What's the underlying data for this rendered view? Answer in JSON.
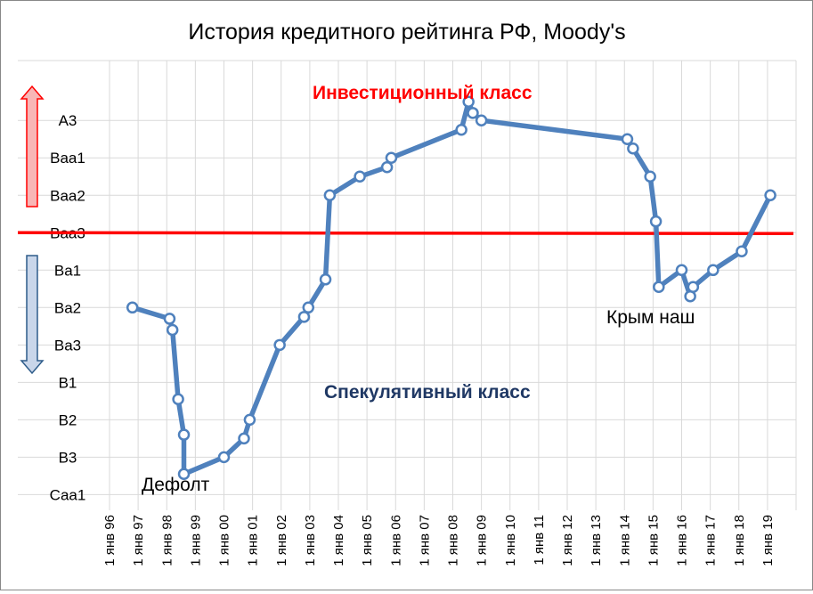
{
  "chart_data": {
    "type": "line",
    "title": "История кредитного рейтинга РФ, Moody's",
    "xlabel": "",
    "ylabel": "",
    "y_categories": [
      "Caa1",
      "B3",
      "B2",
      "B1",
      "Ba3",
      "Ba2",
      "Ba1",
      "Baa3",
      "Baa2",
      "Baa1",
      "A3"
    ],
    "x_tick_labels": [
      "1 янв 96",
      "1 янв 97",
      "1 янв 98",
      "1 янв 99",
      "1 янв 00",
      "1 янв 01",
      "1 янв 02",
      "1 янв 03",
      "1 янв 04",
      "1 янв 05",
      "1 янв 06",
      "1 янв 07",
      "1 янв 08",
      "1 янв 09",
      "1 янв 10",
      "1 янв 11",
      "1 янв 12",
      "1 янв 13",
      "1 янв 14",
      "1 янв 15",
      "1 янв 16",
      "1 янв 17",
      "1 янв 18",
      "1 янв 19"
    ],
    "x_range": [
      1996,
      2020
    ],
    "y_range": [
      -0.3,
      11.6
    ],
    "grid": true,
    "series": [
      {
        "color": "#4f81bd",
        "points": [
          {
            "x": 1996.8,
            "y": 5
          },
          {
            "x": 1998.1,
            "y": 4.7
          },
          {
            "x": 1998.2,
            "y": 4.4
          },
          {
            "x": 1998.4,
            "y": 2.55
          },
          {
            "x": 1998.6,
            "y": 1.6
          },
          {
            "x": 1998.6,
            "y": 0.55
          },
          {
            "x": 2000.0,
            "y": 1.0
          },
          {
            "x": 2000.7,
            "y": 1.5
          },
          {
            "x": 2000.9,
            "y": 2.0
          },
          {
            "x": 2001.95,
            "y": 4.0
          },
          {
            "x": 2002.8,
            "y": 4.75
          },
          {
            "x": 2002.95,
            "y": 5.0
          },
          {
            "x": 2003.55,
            "y": 5.75
          },
          {
            "x": 2003.7,
            "y": 8.0
          },
          {
            "x": 2004.75,
            "y": 8.5
          },
          {
            "x": 2005.7,
            "y": 8.75
          },
          {
            "x": 2005.85,
            "y": 9.0
          },
          {
            "x": 2008.3,
            "y": 9.75
          },
          {
            "x": 2008.55,
            "y": 10.5
          },
          {
            "x": 2008.7,
            "y": 10.2
          },
          {
            "x": 2009.0,
            "y": 10.0
          },
          {
            "x": 2014.1,
            "y": 9.5
          },
          {
            "x": 2014.3,
            "y": 9.25
          },
          {
            "x": 2014.9,
            "y": 8.5
          },
          {
            "x": 2015.1,
            "y": 7.3
          },
          {
            "x": 2015.2,
            "y": 5.55
          },
          {
            "x": 2016.0,
            "y": 6.0
          },
          {
            "x": 2016.3,
            "y": 5.3
          },
          {
            "x": 2016.4,
            "y": 5.55
          },
          {
            "x": 2017.1,
            "y": 6.0
          },
          {
            "x": 2018.1,
            "y": 6.5
          },
          {
            "x": 2019.1,
            "y": 8.0
          }
        ]
      }
    ],
    "threshold": {
      "y": 7.0,
      "color": "#ff0000"
    },
    "annotations": {
      "investment": {
        "text": "Инвестиционный класс",
        "color": "#ff0000"
      },
      "speculative": {
        "text": "Спекулятивный класс",
        "color": "#1f3864"
      },
      "default": {
        "text": "Дефолт"
      },
      "crimea": {
        "text": "Крым наш"
      }
    },
    "colors": {
      "grid": "#d9d9d9",
      "line": "#4f81bd",
      "marker_fill": "#ffffff",
      "arrow_up_fill": "#f8b6b6",
      "arrow_up_stroke": "#ff0000",
      "arrow_down_fill": "#c9d6ea",
      "arrow_down_stroke": "#2e5c8a"
    }
  }
}
